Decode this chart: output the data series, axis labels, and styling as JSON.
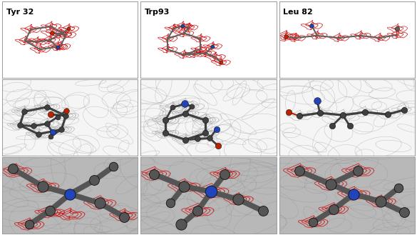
{
  "figsize": [
    5.85,
    3.29
  ],
  "dpi": 100,
  "cols": [
    "Tyr 32",
    "Trp93",
    "Leu 82"
  ],
  "bg_white": "#ffffff",
  "bg_row2": "#c0c0c0",
  "atom_dark": "#606060",
  "atom_blue": "#2244bb",
  "atom_red": "#cc2200",
  "atom_black": "#303030",
  "red_mesh": "#cc0000",
  "gray_mesh": "#999999",
  "border_color": "#999999",
  "label_fontsize": 8,
  "label_fontweight": "bold",
  "row0_bg": "#ffffff",
  "row1_bg": "#f5f5f5",
  "row2_bg": "#b8b8b8"
}
